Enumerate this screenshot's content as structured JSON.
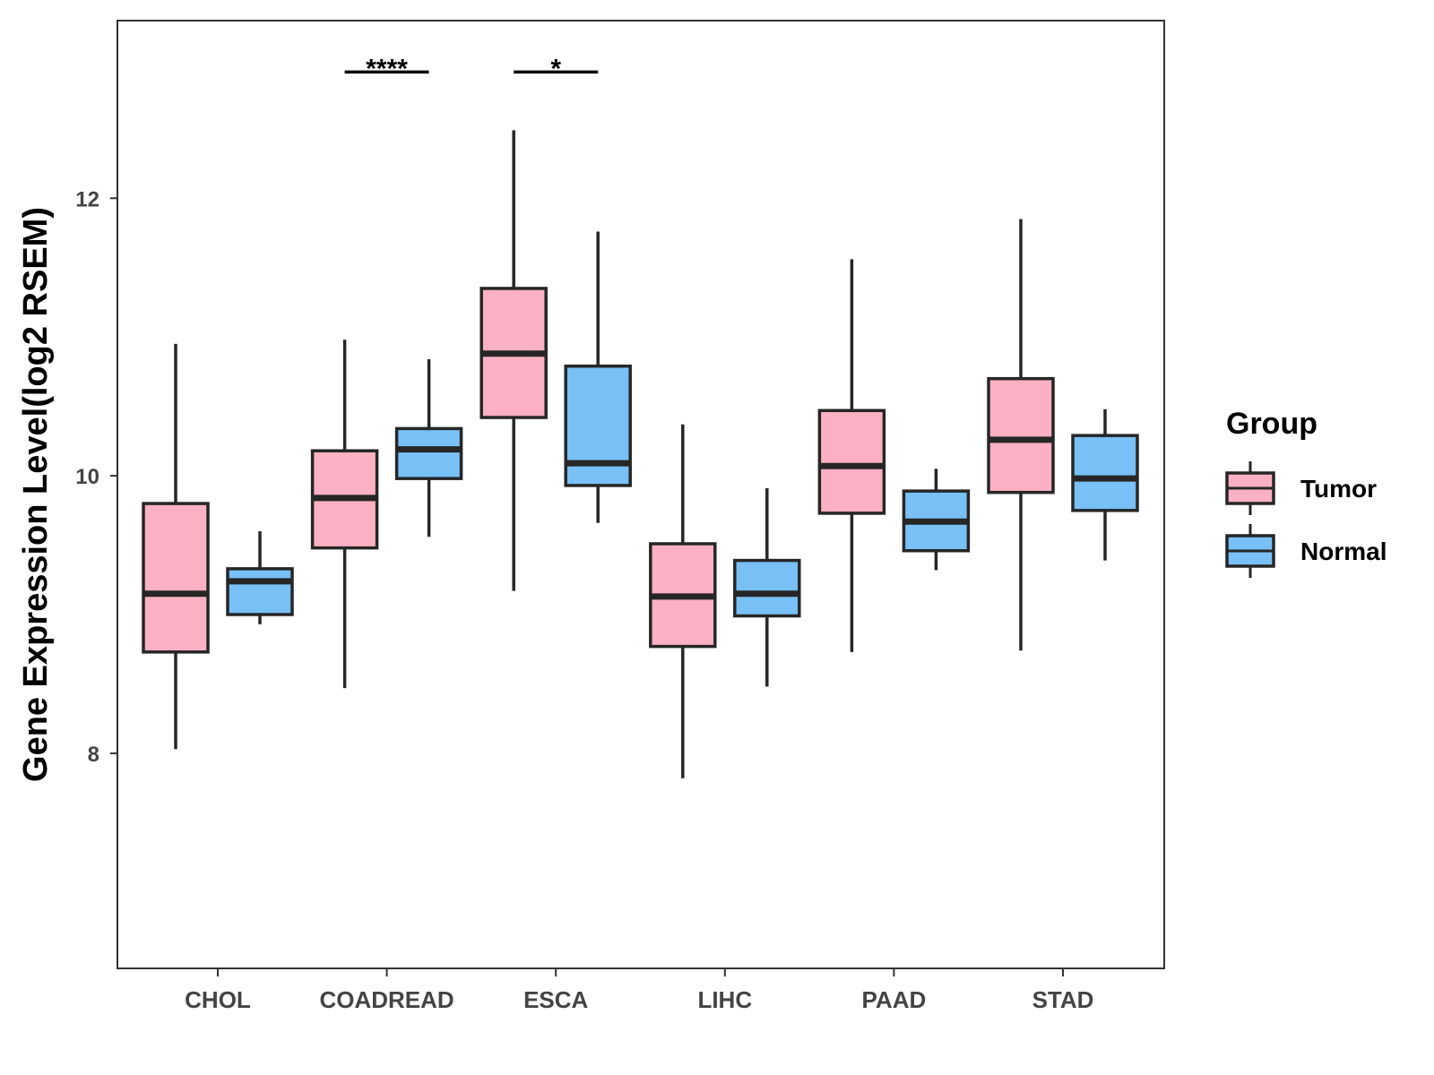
{
  "chart_data": {
    "type": "boxplot",
    "ylabel": "Gene Expression Level(log2 RSEM)",
    "xlabel": "",
    "ylim": [
      6.45,
      13.28
    ],
    "yticks": [
      8,
      10,
      12
    ],
    "categories": [
      "CHOL",
      "COADREAD",
      "ESCA",
      "LIHC",
      "PAAD",
      "STAD"
    ],
    "legend": {
      "title": "Group",
      "position": "right",
      "entries": [
        {
          "name": "Tumor",
          "color": "#FBB1C3"
        },
        {
          "name": "Normal",
          "color": "#78C0F5"
        }
      ]
    },
    "series": [
      {
        "name": "Tumor",
        "color": "#FBB1C3",
        "boxes": [
          {
            "category": "CHOL",
            "min": 8.03,
            "q1": 8.73,
            "median": 9.15,
            "q3": 9.8,
            "max": 10.95
          },
          {
            "category": "COADREAD",
            "min": 8.47,
            "q1": 9.48,
            "median": 9.84,
            "q3": 10.18,
            "max": 10.98
          },
          {
            "category": "ESCA",
            "min": 9.17,
            "q1": 10.42,
            "median": 10.88,
            "q3": 11.35,
            "max": 12.49
          },
          {
            "category": "LIHC",
            "min": 7.82,
            "q1": 8.77,
            "median": 9.13,
            "q3": 9.51,
            "max": 10.37
          },
          {
            "category": "PAAD",
            "min": 8.73,
            "q1": 9.73,
            "median": 10.07,
            "q3": 10.47,
            "max": 11.56
          },
          {
            "category": "STAD",
            "min": 8.74,
            "q1": 9.88,
            "median": 10.26,
            "q3": 10.7,
            "max": 11.85
          }
        ]
      },
      {
        "name": "Normal",
        "color": "#78C0F5",
        "boxes": [
          {
            "category": "CHOL",
            "min": 8.93,
            "q1": 9.0,
            "median": 9.24,
            "q3": 9.33,
            "max": 9.6
          },
          {
            "category": "COADREAD",
            "min": 9.56,
            "q1": 9.98,
            "median": 10.19,
            "q3": 10.34,
            "max": 10.84
          },
          {
            "category": "ESCA",
            "min": 9.66,
            "q1": 9.93,
            "median": 10.09,
            "q3": 10.79,
            "max": 11.76
          },
          {
            "category": "LIHC",
            "min": 8.48,
            "q1": 8.99,
            "median": 9.15,
            "q3": 9.39,
            "max": 9.91
          },
          {
            "category": "PAAD",
            "min": 9.32,
            "q1": 9.46,
            "median": 9.67,
            "q3": 9.89,
            "max": 10.05
          },
          {
            "category": "STAD",
            "min": 9.39,
            "q1": 9.75,
            "median": 9.98,
            "q3": 10.29,
            "max": 10.48
          }
        ]
      }
    ],
    "significance": [
      {
        "category": "COADREAD",
        "label": "****",
        "y": 12.91
      },
      {
        "category": "ESCA",
        "label": "*",
        "y": 12.91
      }
    ],
    "colors": {
      "tumor": "#FBB1C3",
      "normal": "#78C0F5",
      "outline": "#262626",
      "axis": "#333333"
    }
  }
}
